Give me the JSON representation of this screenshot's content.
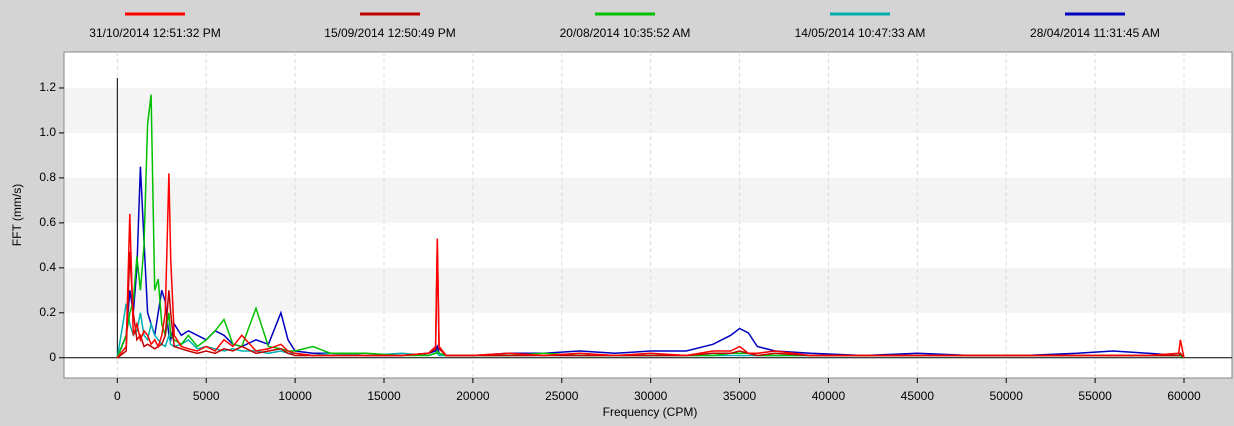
{
  "chart_data": {
    "type": "line",
    "xlabel": "Frequency (CPM)",
    "ylabel": "FFT (mm/s)",
    "x": [
      0,
      500,
      700,
      900,
      1100,
      1300,
      1500,
      1700,
      1900,
      2100,
      2300,
      2500,
      2700,
      2900,
      3000,
      3200,
      3600,
      4000,
      4500,
      5000,
      5500,
      6000,
      6500,
      7000,
      7800,
      8500,
      9200,
      9600,
      10000,
      11000,
      12000,
      14000,
      16000,
      17500,
      17900,
      18000,
      18100,
      18500,
      20000,
      22000,
      24000,
      26000,
      28000,
      30000,
      32000,
      33500,
      34500,
      35000,
      35500,
      36000,
      37000,
      39000,
      42000,
      45000,
      48000,
      51000,
      54000,
      56000,
      58000,
      59700,
      59800,
      60000
    ],
    "series": [
      {
        "name": "31/10/2014 12:51:32 PM",
        "color": "#ff0000",
        "values": [
          0,
          0.05,
          0.64,
          0.1,
          0.15,
          0.08,
          0.12,
          0.1,
          0.06,
          0.08,
          0.05,
          0.1,
          0.2,
          0.82,
          0.44,
          0.1,
          0.05,
          0.04,
          0.03,
          0.05,
          0.03,
          0.08,
          0.05,
          0.1,
          0.03,
          0.04,
          0.06,
          0.03,
          0.02,
          0.01,
          0.01,
          0.01,
          0.01,
          0.02,
          0.05,
          0.53,
          0.05,
          0.01,
          0.01,
          0.02,
          0.01,
          0.02,
          0.01,
          0.02,
          0.01,
          0.03,
          0.03,
          0.05,
          0.02,
          0.02,
          0.03,
          0.01,
          0.01,
          0.01,
          0.01,
          0.01,
          0.01,
          0.01,
          0.01,
          0.02,
          0.08,
          0
        ]
      },
      {
        "name": "15/09/2014 12:50:49 PM",
        "color": "#c00000",
        "values": [
          0,
          0.03,
          0.47,
          0.2,
          0.08,
          0.1,
          0.05,
          0.06,
          0.05,
          0.04,
          0.05,
          0.06,
          0.1,
          0.3,
          0.2,
          0.05,
          0.04,
          0.03,
          0.02,
          0.03,
          0.02,
          0.04,
          0.03,
          0.05,
          0.02,
          0.03,
          0.04,
          0.02,
          0.01,
          0.01,
          0.01,
          0.01,
          0.01,
          0.02,
          0.04,
          0.5,
          0.04,
          0.01,
          0.01,
          0.01,
          0.01,
          0.01,
          0.01,
          0.01,
          0.01,
          0.02,
          0.02,
          0.03,
          0.02,
          0.01,
          0.02,
          0.01,
          0.01,
          0.01,
          0.01,
          0.01,
          0.01,
          0.01,
          0.01,
          0.01,
          0.02,
          0
        ]
      },
      {
        "name": "20/08/2014 10:35:52 AM",
        "color": "#00c000",
        "values": [
          0,
          0.1,
          0.2,
          0.25,
          0.45,
          0.3,
          0.5,
          1.04,
          1.17,
          0.3,
          0.35,
          0.15,
          0.1,
          0.2,
          0.1,
          0.08,
          0.06,
          0.1,
          0.05,
          0.08,
          0.12,
          0.17,
          0.06,
          0.05,
          0.22,
          0.05,
          0.04,
          0.03,
          0.03,
          0.05,
          0.02,
          0.02,
          0.01,
          0.01,
          0.02,
          0.03,
          0.02,
          0.01,
          0.01,
          0.01,
          0.02,
          0.01,
          0.01,
          0.01,
          0.01,
          0.01,
          0.02,
          0.02,
          0.02,
          0.01,
          0.01,
          0.01,
          0.01,
          0.01,
          0.01,
          0.01,
          0.01,
          0.01,
          0.01,
          0.01,
          0.01,
          0
        ]
      },
      {
        "name": "14/05/2014 10:47:33 AM",
        "color": "#00b0b0",
        "values": [
          0,
          0.24,
          0.15,
          0.1,
          0.12,
          0.2,
          0.1,
          0.08,
          0.15,
          0.1,
          0.08,
          0.06,
          0.05,
          0.1,
          0.06,
          0.05,
          0.06,
          0.08,
          0.04,
          0.05,
          0.04,
          0.03,
          0.04,
          0.03,
          0.03,
          0.02,
          0.03,
          0.02,
          0.02,
          0.01,
          0.02,
          0.01,
          0.02,
          0.01,
          0.02,
          0.02,
          0.01,
          0.01,
          0.01,
          0.01,
          0.01,
          0.01,
          0.01,
          0.01,
          0.01,
          0.01,
          0.01,
          0.01,
          0.01,
          0.01,
          0.01,
          0.01,
          0.01,
          0.01,
          0.01,
          0.01,
          0.01,
          0.01,
          0.01,
          0.01,
          0.01,
          0
        ]
      },
      {
        "name": "28/04/2014 11:31:45 AM",
        "color": "#0000c0",
        "values": [
          0,
          0.1,
          0.3,
          0.2,
          0.4,
          0.85,
          0.52,
          0.2,
          0.15,
          0.1,
          0.2,
          0.3,
          0.25,
          0.1,
          0.08,
          0.15,
          0.1,
          0.12,
          0.1,
          0.08,
          0.12,
          0.1,
          0.06,
          0.05,
          0.08,
          0.06,
          0.2,
          0.08,
          0.03,
          0.02,
          0.02,
          0.01,
          0.01,
          0.02,
          0.03,
          0.05,
          0.02,
          0.01,
          0.01,
          0.02,
          0.02,
          0.03,
          0.02,
          0.03,
          0.03,
          0.06,
          0.1,
          0.13,
          0.11,
          0.05,
          0.03,
          0.02,
          0.01,
          0.02,
          0.01,
          0.01,
          0.02,
          0.03,
          0.02,
          0.01,
          0.01,
          0
        ]
      }
    ],
    "xlim": [
      -3000,
      62700
    ],
    "ylim": [
      -0.09,
      1.36
    ],
    "xticks": [
      0,
      5000,
      10000,
      15000,
      20000,
      25000,
      30000,
      35000,
      40000,
      45000,
      50000,
      55000,
      60000
    ],
    "yticks": [
      0,
      0.2,
      0.4,
      0.6,
      0.8,
      {
        "value": 1,
        "label": "1.0"
      },
      1.2
    ],
    "grid": true,
    "legend": "top"
  }
}
